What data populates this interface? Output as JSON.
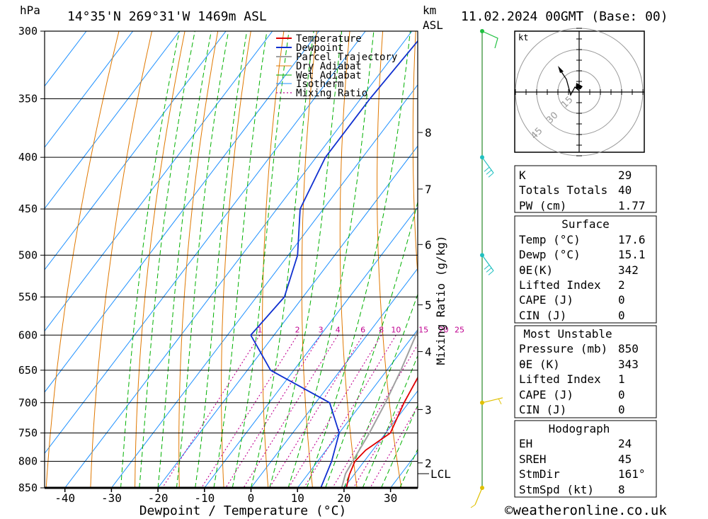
{
  "header": {
    "pressure_unit": "hPa",
    "location": "14°35'N  269°31'W  1469m  ASL",
    "km_label": "km",
    "asl_label": "ASL",
    "datetime": "11.02.2024  00GMT  (Base: 00)"
  },
  "chart_data": {
    "type": "line",
    "title": "Skew-T log-P diagram",
    "xlabel": "Dewpoint / Temperature (°C)",
    "ylabel": "hPa",
    "right_axis_label": "Mixing Ratio (g/kg)",
    "pressure_levels": [
      300,
      350,
      400,
      450,
      500,
      550,
      600,
      650,
      700,
      750,
      800,
      850
    ],
    "temperature_ticks": [
      -40,
      -30,
      -20,
      -10,
      0,
      10,
      20,
      30
    ],
    "height_km": [
      {
        "km": "8",
        "p": 378
      },
      {
        "km": "7",
        "p": 430
      },
      {
        "km": "6",
        "p": 488
      },
      {
        "km": "5",
        "p": 560
      },
      {
        "km": "4",
        "p": 623
      },
      {
        "km": "3",
        "p": 711
      },
      {
        "km": "2",
        "p": 803
      }
    ],
    "lcl_label": "LCL",
    "lcl_pressure": 823,
    "mixing_ratio_labels": [
      "1",
      "2",
      "3",
      "4",
      "6",
      "8",
      "10",
      "15",
      "20",
      "25"
    ],
    "mixing_ratio_values": [
      1,
      2,
      3,
      4,
      6,
      8,
      10,
      15,
      20,
      25
    ],
    "legend": [
      "Temperature",
      "Dewpoint",
      "Parcel Trajectory",
      "Dry Adiabat",
      "Wet Adiabat",
      "Isotherm",
      "Mixing Ratio"
    ],
    "series": [
      {
        "name": "Temperature",
        "color": "#e00000",
        "points": [
          [
            -1,
            350
          ],
          [
            1,
            400
          ],
          [
            4,
            450
          ],
          [
            8,
            500
          ],
          [
            12,
            550
          ],
          [
            16,
            600
          ],
          [
            17.5,
            650
          ],
          [
            19,
            700
          ],
          [
            21,
            750
          ],
          [
            18.5,
            780
          ],
          [
            18,
            800
          ],
          [
            19,
            825
          ],
          [
            20.5,
            850
          ]
        ]
      },
      {
        "name": "Dewpoint",
        "color": "#1030d0",
        "points": [
          [
            -37,
            300
          ],
          [
            -38,
            350
          ],
          [
            -38,
            400
          ],
          [
            -35,
            450
          ],
          [
            -28,
            500
          ],
          [
            -24,
            550
          ],
          [
            -25,
            600
          ],
          [
            -15,
            650
          ],
          [
            3,
            700
          ],
          [
            10,
            750
          ],
          [
            13,
            800
          ],
          [
            15,
            850
          ]
        ]
      },
      {
        "name": "Parcel Trajectory",
        "color": "#a0a0a0",
        "points": [
          [
            -13,
            300
          ],
          [
            -10,
            350
          ],
          [
            -5,
            400
          ],
          [
            0,
            450
          ],
          [
            4,
            500
          ],
          [
            7.5,
            550
          ],
          [
            10.5,
            600
          ],
          [
            13,
            650
          ],
          [
            15,
            700
          ],
          [
            16.5,
            750
          ],
          [
            17.5,
            800
          ],
          [
            18,
            823
          ],
          [
            19.5,
            850
          ]
        ]
      }
    ]
  },
  "hodograph": {
    "unit_label": "kt",
    "ring_labels": [
      "15",
      "30",
      "45"
    ],
    "arrow_color": "#000000"
  },
  "indices": {
    "basic": [
      {
        "label": "K",
        "value": "29"
      },
      {
        "label": "Totals Totals",
        "value": "40"
      },
      {
        "label": "PW (cm)",
        "value": "1.77"
      }
    ],
    "surface": {
      "title": "Surface",
      "rows": [
        {
          "label": "Temp (°C)",
          "value": "17.6"
        },
        {
          "label": "Dewp (°C)",
          "value": "15.1"
        },
        {
          "label": "θE(K)",
          "value": "342"
        },
        {
          "label": "Lifted Index",
          "value": "2"
        },
        {
          "label": "CAPE (J)",
          "value": "0"
        },
        {
          "label": "CIN (J)",
          "value": "0"
        }
      ]
    },
    "most_unstable": {
      "title": "Most Unstable",
      "rows": [
        {
          "label": "Pressure (mb)",
          "value": "850"
        },
        {
          "label": "θE (K)",
          "value": "343"
        },
        {
          "label": "Lifted Index",
          "value": "1"
        },
        {
          "label": "CAPE (J)",
          "value": "0"
        },
        {
          "label": "CIN (J)",
          "value": "0"
        }
      ]
    },
    "hodograph": {
      "title": "Hodograph",
      "rows": [
        {
          "label": "EH",
          "value": "24"
        },
        {
          "label": "SREH",
          "value": "45"
        },
        {
          "label": "StmDir",
          "value": "161°"
        },
        {
          "label": "StmSpd (kt)",
          "value": "8"
        }
      ]
    }
  },
  "wind_profile": {
    "levels": [
      {
        "p": 300,
        "color": "#20c040"
      },
      {
        "p": 400,
        "color": "#20c0c0"
      },
      {
        "p": 500,
        "color": "#20c0c0"
      },
      {
        "p": 700,
        "color": "#e0c000"
      },
      {
        "p": 850,
        "color": "#e0c000"
      }
    ]
  },
  "footer": {
    "copyright": "©weatheronline.co.uk"
  }
}
